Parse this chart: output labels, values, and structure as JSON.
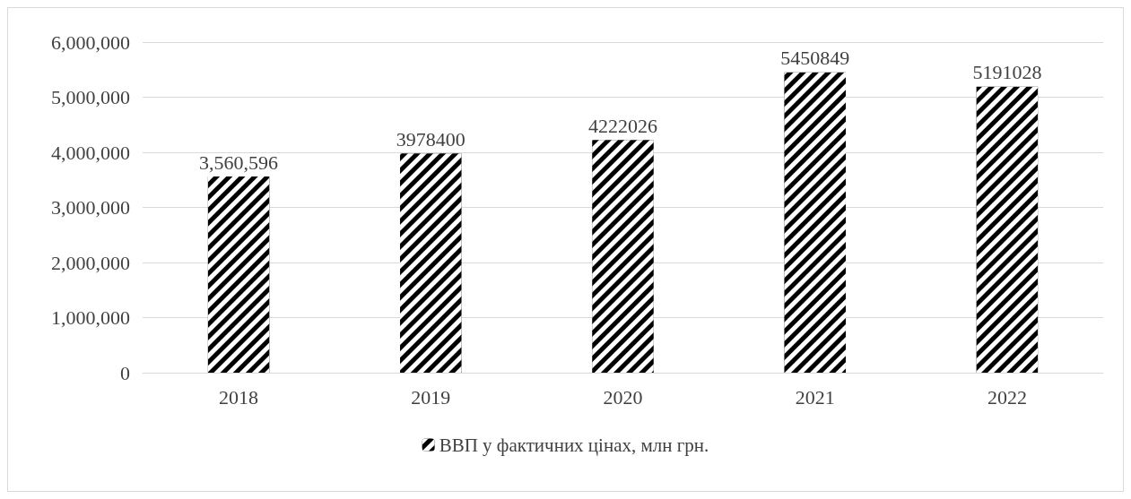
{
  "chart_data": {
    "type": "bar",
    "categories": [
      "2018",
      "2019",
      "2020",
      "2021",
      "2022"
    ],
    "series": [
      {
        "name": "ВВП у фактичних цінах, млн грн.",
        "color": "#000000",
        "values": [
          3560596,
          3978400,
          4222026,
          5450849,
          5191028
        ],
        "value_labels": [
          "3,560,596",
          "3978400",
          "4222026",
          "5450849",
          "5191028"
        ]
      }
    ],
    "ylim": [
      0,
      6000000
    ],
    "yticks": [
      {
        "value": 0,
        "label": "0"
      },
      {
        "value": 1000000,
        "label": "1,000,000"
      },
      {
        "value": 2000000,
        "label": "2,000,000"
      },
      {
        "value": 3000000,
        "label": "3,000,000"
      },
      {
        "value": 4000000,
        "label": "4,000,000"
      },
      {
        "value": 5000000,
        "label": "5,000,000"
      },
      {
        "value": 6000000,
        "label": "6,000,000"
      }
    ],
    "grid": "y",
    "legend": "bottom"
  }
}
